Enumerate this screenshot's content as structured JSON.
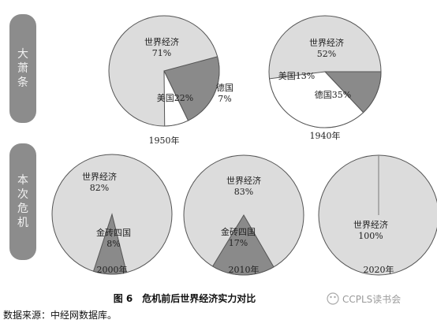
{
  "row_labels": [
    "大萧条",
    "本次危机"
  ],
  "caption": "图 6　危机前后世界经济实力对比",
  "source": "数据来源：中经网数据库。",
  "watermark": "CCPLS读书会",
  "colors": {
    "world": "#dcdcdc",
    "us": "#8a8a8a",
    "germany": "#ffffff",
    "brics": "#8a8a8a",
    "outline": "#555555",
    "label_box": "#8c8c8c"
  },
  "chart_data": [
    {
      "type": "pie",
      "year_label": "1950年",
      "slices": [
        {
          "label": "世界经济",
          "value_text": "71%",
          "value": 71,
          "color": "#dcdcdc"
        },
        {
          "label": "美国",
          "value_text": "22%",
          "value": 22,
          "color": "#8a8a8a"
        },
        {
          "label": "德国",
          "value_text": "7%",
          "value": 7,
          "color": "#ffffff"
        }
      ]
    },
    {
      "type": "pie",
      "year_label": "1940年",
      "slices": [
        {
          "label": "世界经济",
          "value_text": "52%",
          "value": 52,
          "color": "#dcdcdc"
        },
        {
          "label": "美国",
          "value_text": "13%",
          "value": 13,
          "color": "#8a8a8a"
        },
        {
          "label": "德国",
          "value_text": "35%",
          "value": 35,
          "color": "#ffffff"
        }
      ]
    },
    {
      "type": "pie",
      "year_label": "2000年",
      "slices": [
        {
          "label": "世界经济",
          "value_text": "82%",
          "value": 82,
          "color": "#dcdcdc"
        },
        {
          "label": "金砖四国",
          "value_text": "8%",
          "value": 8,
          "color": "#8a8a8a"
        }
      ]
    },
    {
      "type": "pie",
      "year_label": "2010年",
      "slices": [
        {
          "label": "世界经济",
          "value_text": "83%",
          "value": 83,
          "color": "#dcdcdc"
        },
        {
          "label": "金砖四国",
          "value_text": "17%",
          "value": 17,
          "color": "#8a8a8a"
        }
      ]
    },
    {
      "type": "pie",
      "year_label": "2020年",
      "slices": [
        {
          "label": "世界经济",
          "value_text": "100%",
          "value": 100,
          "color": "#dcdcdc"
        }
      ]
    }
  ]
}
